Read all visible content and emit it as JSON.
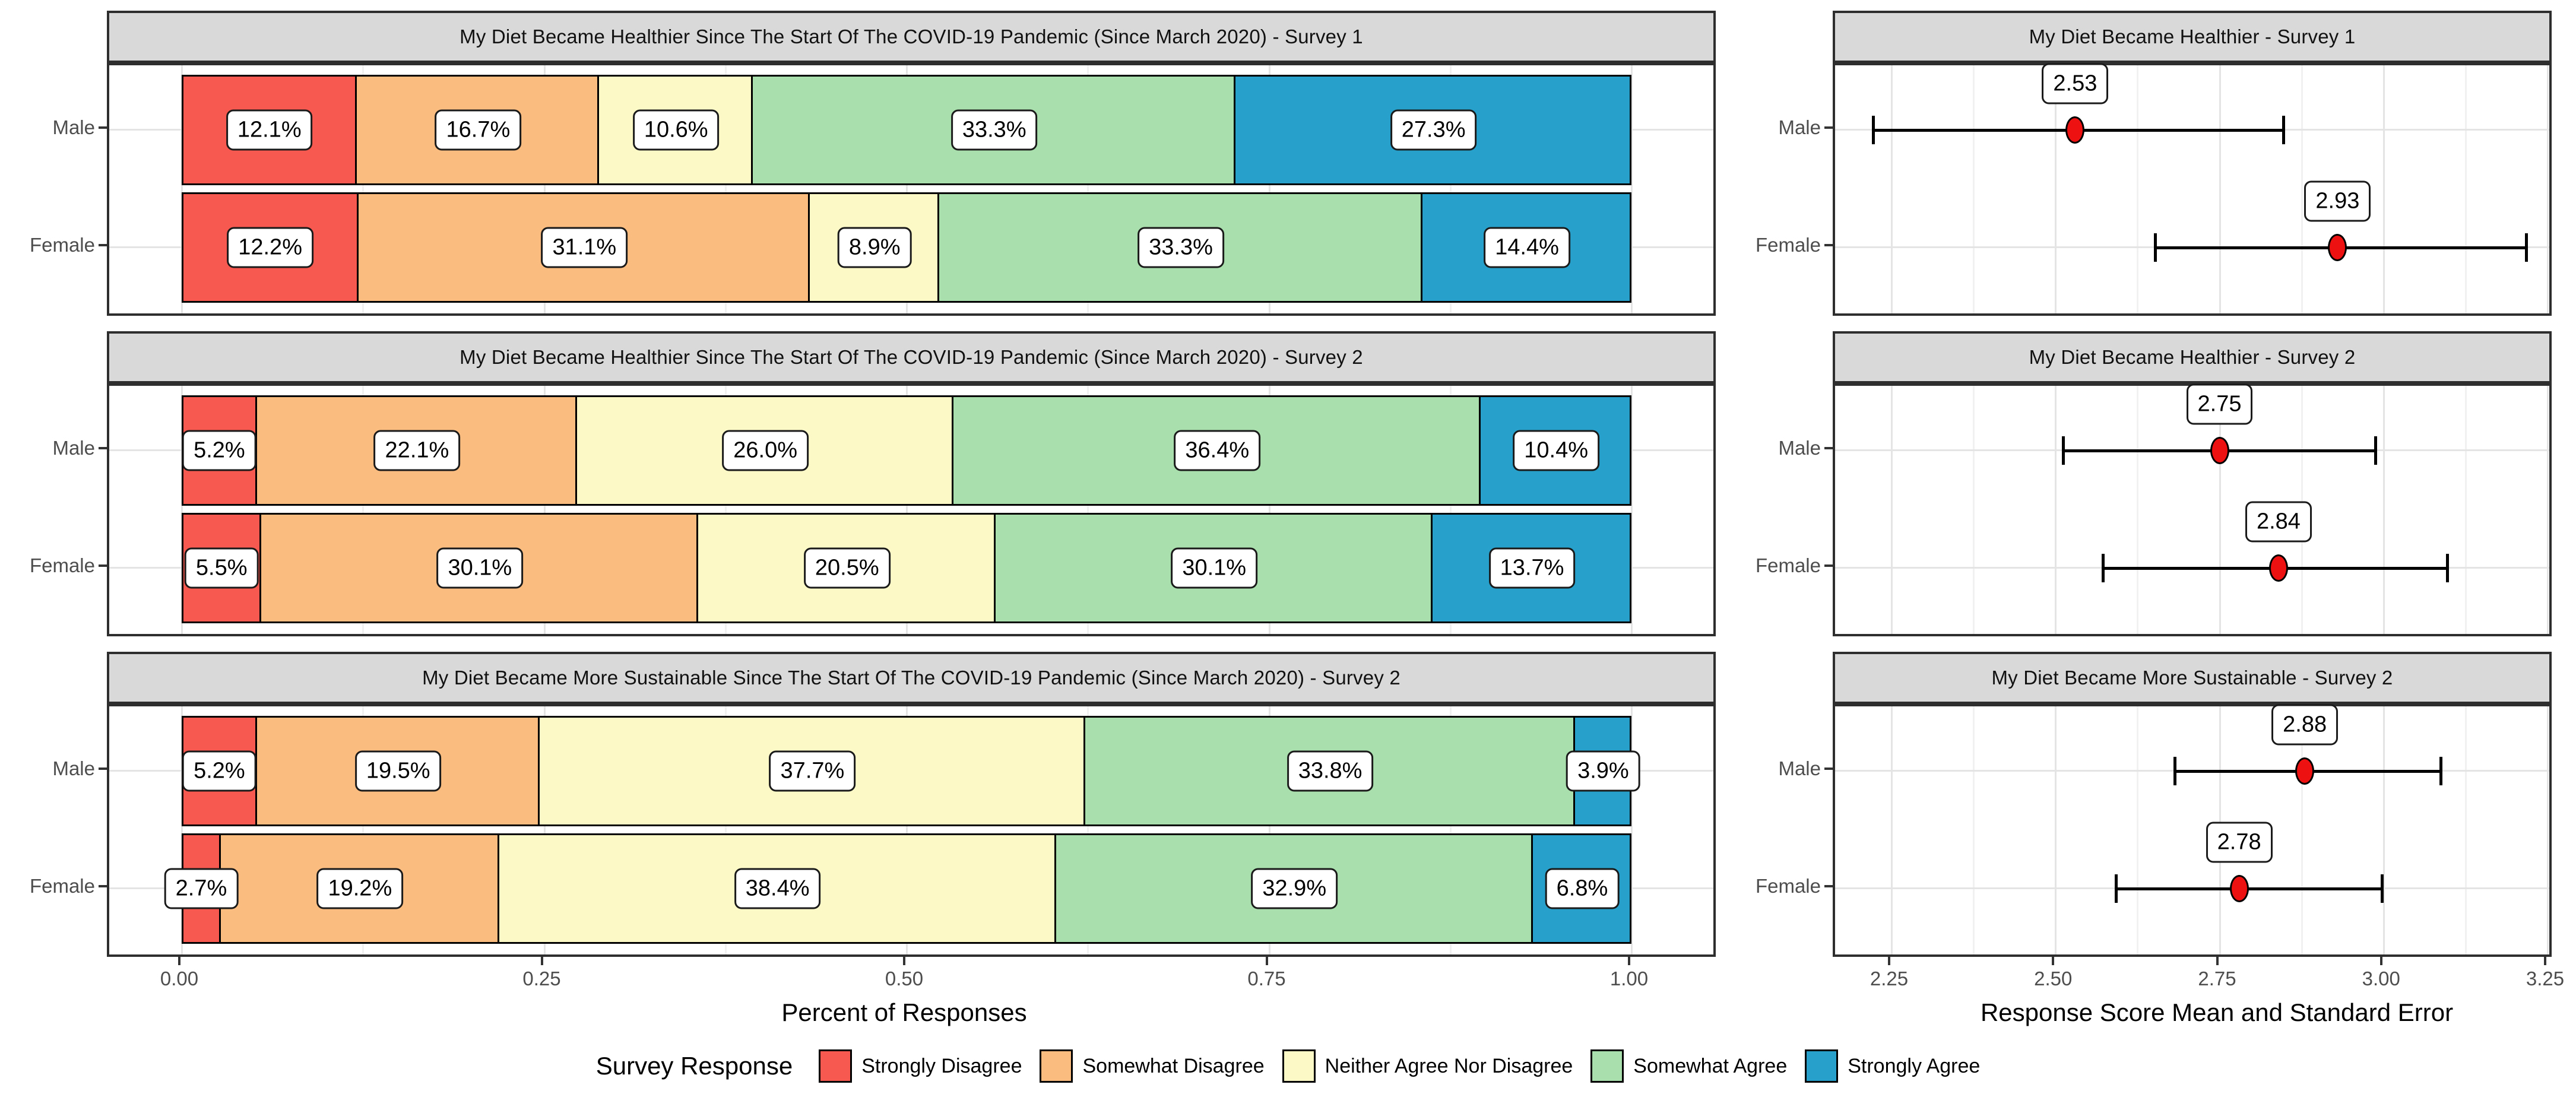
{
  "figure_colors": {
    "strongly_disagree": "#F7584F",
    "somewhat_disagree": "#FBBC80",
    "neither": "#FCF9C7",
    "somewhat_agree": "#A9DFAD",
    "strongly_agree": "#27A1CB",
    "point_red": "#EE1111",
    "strip_bg": "#D9D9D9",
    "panel_border": "#2E2E2E",
    "axis_text": "#4D4D4D"
  },
  "categories": [
    "Male",
    "Female"
  ],
  "left_axis": {
    "title": "Percent of Responses",
    "tick_labels": [
      "0.00",
      "0.25",
      "0.50",
      "0.75",
      "1.00"
    ],
    "tick_values": [
      0,
      0.25,
      0.5,
      0.75,
      1.0
    ],
    "minor_values": [
      0.125,
      0.375,
      0.625,
      0.875
    ],
    "range": [
      0,
      1
    ]
  },
  "right_axis": {
    "title": "Response Score Mean and Standard Error",
    "tick_labels": [
      "2.25",
      "2.50",
      "2.75",
      "3.00",
      "3.25"
    ],
    "tick_values": [
      2.25,
      2.5,
      2.75,
      3.0,
      3.25
    ],
    "minor_values": [
      2.375,
      2.625,
      2.875,
      3.125
    ],
    "range": [
      2.17,
      3.31
    ]
  },
  "legend": {
    "title": "Survey Response",
    "items": [
      {
        "label": "Strongly Disagree",
        "color": "#F7584F"
      },
      {
        "label": "Somewhat Disagree",
        "color": "#FBBC80"
      },
      {
        "label": "Neither Agree Nor Disagree",
        "color": "#FCF9C7"
      },
      {
        "label": "Somewhat Agree",
        "color": "#A9DFAD"
      },
      {
        "label": "Strongly Agree",
        "color": "#27A1CB"
      }
    ]
  },
  "chart_data": [
    {
      "type": "bar",
      "subtype": "horizontal-stacked-likert",
      "title": "My Diet Became Healthier Since The Start Of The COVID-19 Pandemic (Since March 2020) - Survey 1",
      "series_names": [
        "Strongly Disagree",
        "Somewhat Disagree",
        "Neither Agree Nor Disagree",
        "Somewhat Agree",
        "Strongly Agree"
      ],
      "rows": [
        {
          "category": "Male",
          "values": [
            12.1,
            16.7,
            10.6,
            33.3,
            27.3
          ],
          "labels": [
            "12.1%",
            "16.7%",
            "10.6%",
            "33.3%",
            "27.3%"
          ]
        },
        {
          "category": "Female",
          "values": [
            12.2,
            31.1,
            8.9,
            33.3,
            14.4
          ],
          "labels": [
            "12.2%",
            "31.1%",
            "8.9%",
            "33.3%",
            "14.4%"
          ]
        }
      ]
    },
    {
      "type": "bar",
      "subtype": "horizontal-stacked-likert",
      "title": "My Diet Became Healthier Since The Start Of The COVID-19 Pandemic (Since March 2020) - Survey 2",
      "series_names": [
        "Strongly Disagree",
        "Somewhat Disagree",
        "Neither Agree Nor Disagree",
        "Somewhat Agree",
        "Strongly Agree"
      ],
      "rows": [
        {
          "category": "Male",
          "values": [
            5.2,
            22.1,
            26.0,
            36.4,
            10.4
          ],
          "labels": [
            "5.2%",
            "22.1%",
            "26.0%",
            "36.4%",
            "10.4%"
          ]
        },
        {
          "category": "Female",
          "values": [
            5.5,
            30.1,
            20.5,
            30.1,
            13.7
          ],
          "labels": [
            "5.5%",
            "30.1%",
            "20.5%",
            "30.1%",
            "13.7%"
          ]
        }
      ]
    },
    {
      "type": "bar",
      "subtype": "horizontal-stacked-likert",
      "title": "My Diet Became More Sustainable Since The Start Of The COVID-19 Pandemic (Since March 2020) - Survey 2",
      "series_names": [
        "Strongly Disagree",
        "Somewhat Disagree",
        "Neither Agree Nor Disagree",
        "Somewhat Agree",
        "Strongly Agree"
      ],
      "rows": [
        {
          "category": "Male",
          "values": [
            5.2,
            19.5,
            37.7,
            33.8,
            3.9
          ],
          "labels": [
            "5.2%",
            "19.5%",
            "37.7%",
            "33.8%",
            "3.9%"
          ]
        },
        {
          "category": "Female",
          "values": [
            2.7,
            19.2,
            38.4,
            32.9,
            6.8
          ],
          "labels": [
            "2.7%",
            "19.2%",
            "38.4%",
            "32.9%",
            "6.8%"
          ]
        }
      ]
    },
    {
      "type": "scatter",
      "subtype": "mean-with-error-bars",
      "title": "My Diet Became Healthier - Survey 1",
      "points": [
        {
          "category": "Male",
          "mean": 2.53,
          "label": "2.53",
          "low": 2.22,
          "high": 2.85
        },
        {
          "category": "Female",
          "mean": 2.93,
          "label": "2.93",
          "low": 2.65,
          "high": 3.22
        }
      ]
    },
    {
      "type": "scatter",
      "subtype": "mean-with-error-bars",
      "title": "My Diet Became Healthier - Survey 2",
      "points": [
        {
          "category": "Male",
          "mean": 2.75,
          "label": "2.75",
          "low": 2.51,
          "high": 2.99
        },
        {
          "category": "Female",
          "mean": 2.84,
          "label": "2.84",
          "low": 2.57,
          "high": 3.1
        }
      ]
    },
    {
      "type": "scatter",
      "subtype": "mean-with-error-bars",
      "title": "My Diet Became More Sustainable - Survey 2",
      "points": [
        {
          "category": "Male",
          "mean": 2.88,
          "label": "2.88",
          "low": 2.68,
          "high": 3.09
        },
        {
          "category": "Female",
          "mean": 2.78,
          "label": "2.78",
          "low": 2.59,
          "high": 3.0
        }
      ]
    }
  ]
}
